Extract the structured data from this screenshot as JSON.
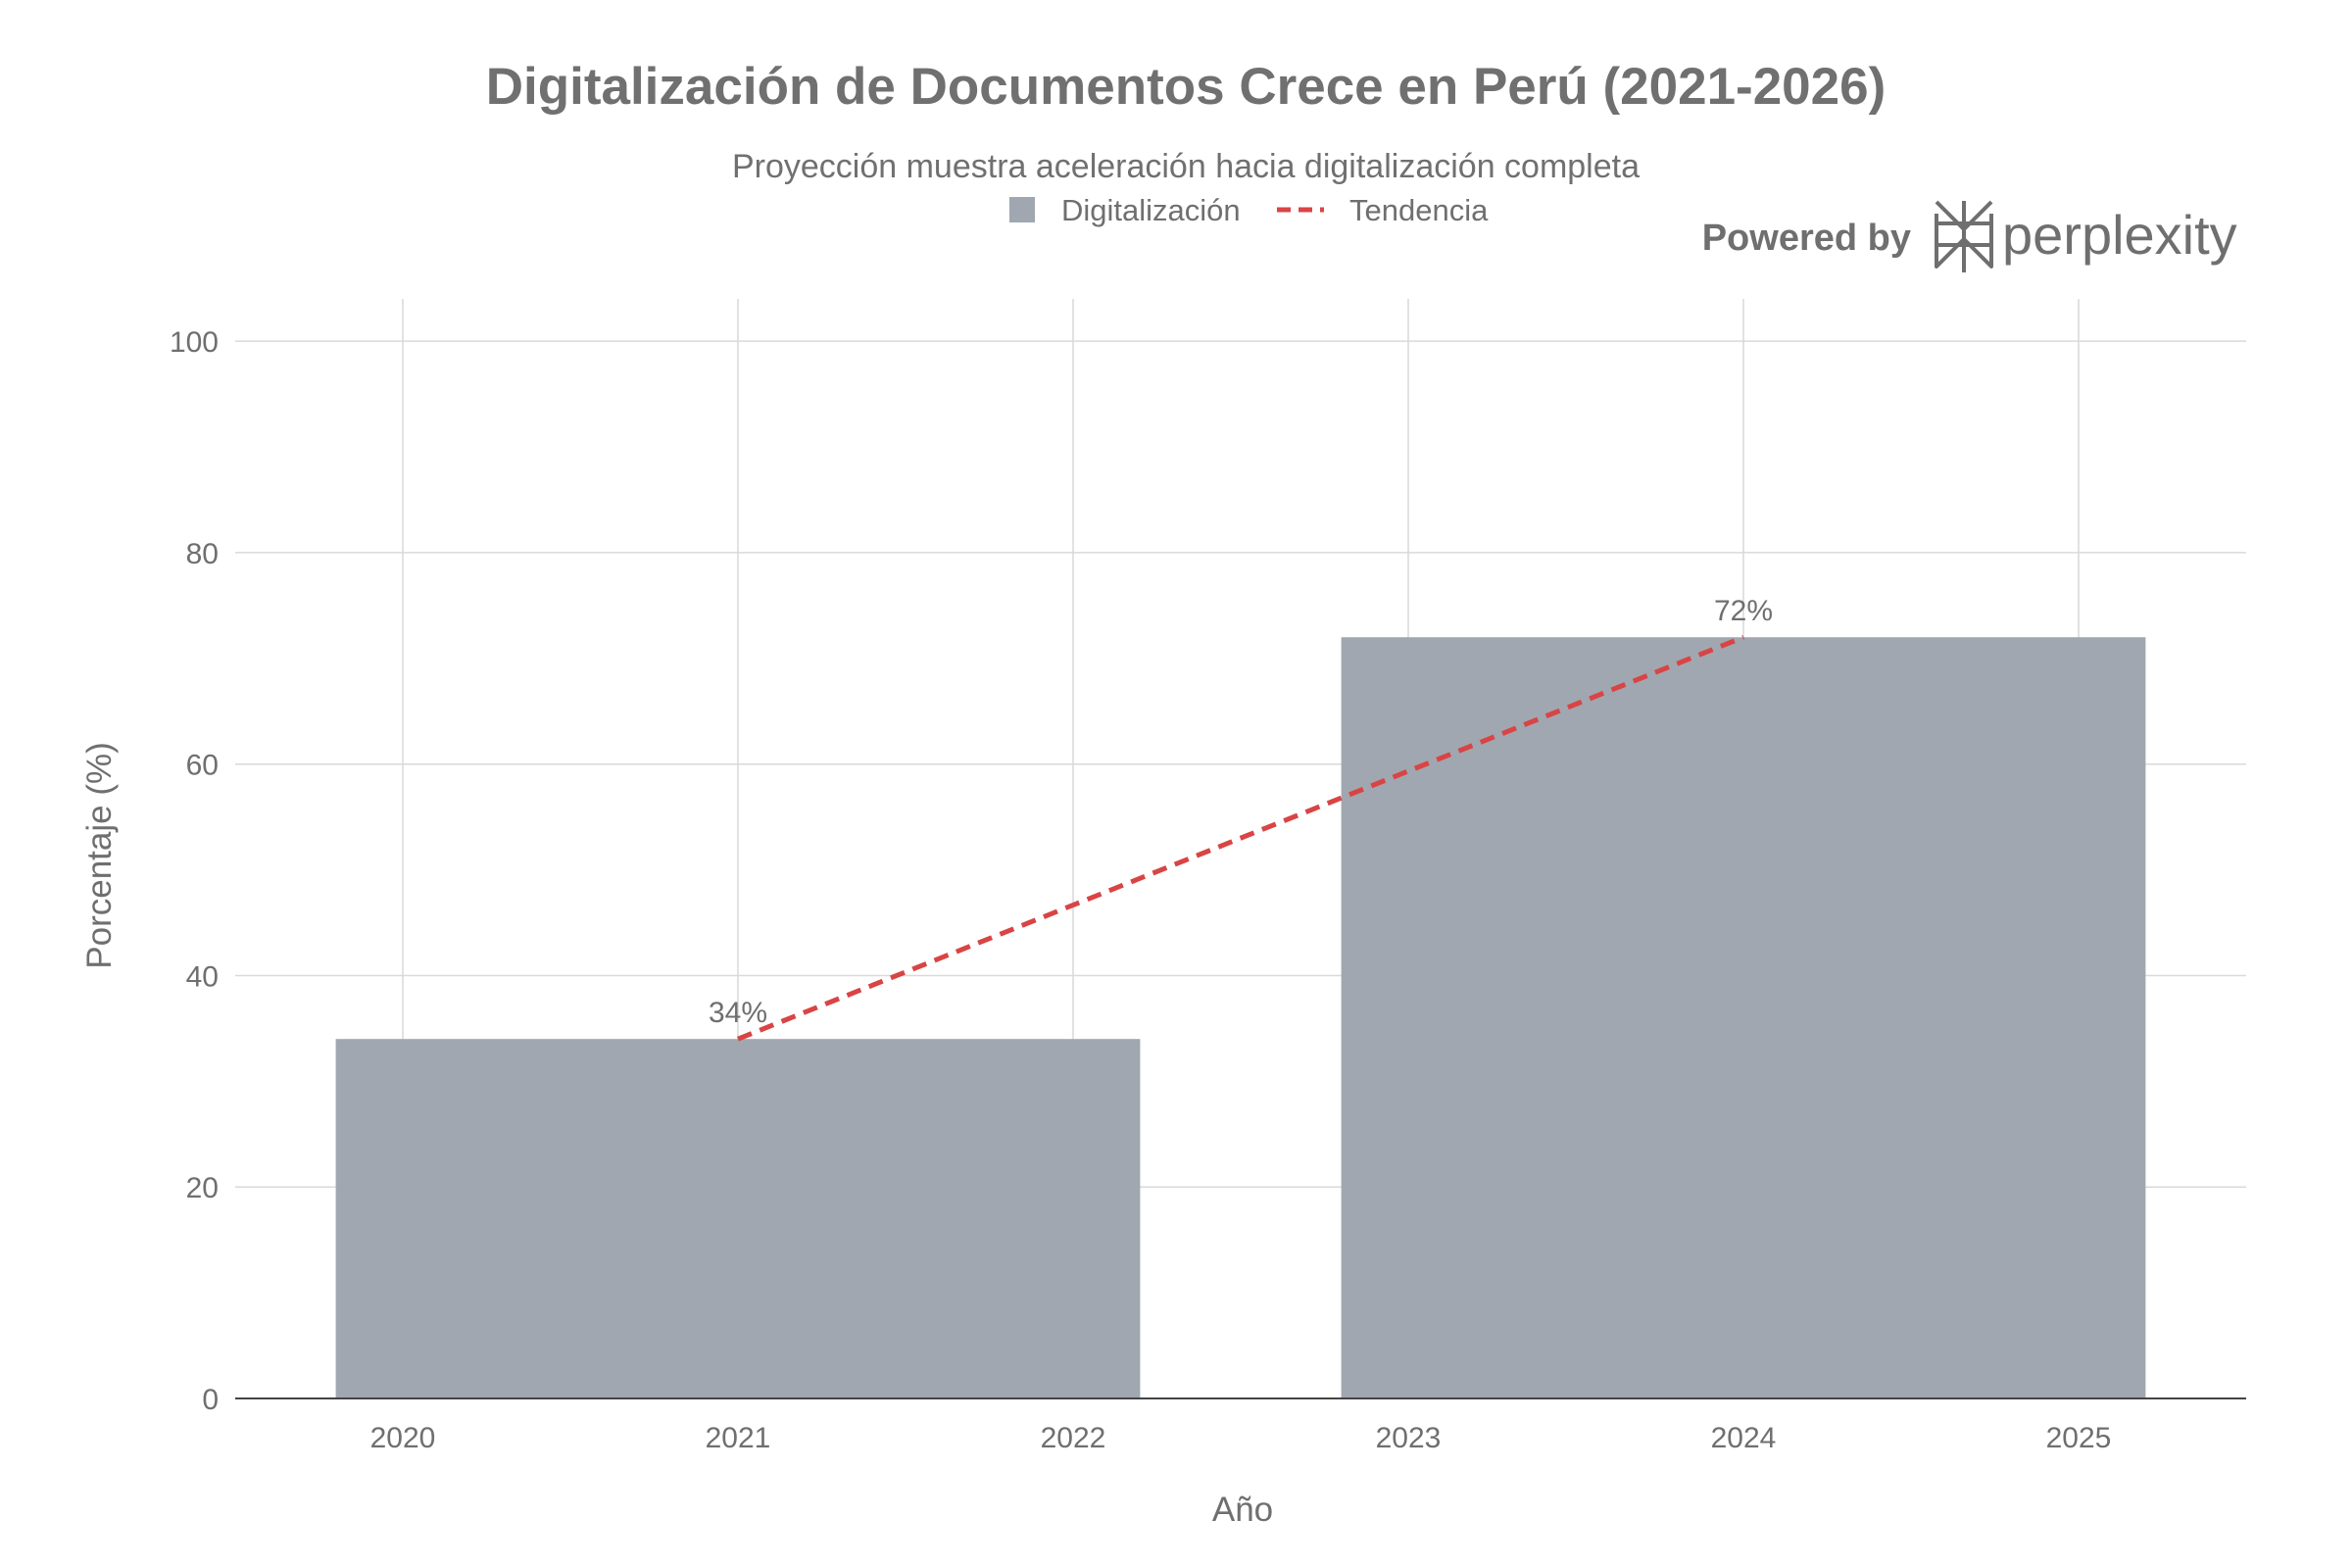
{
  "chart_data": {
    "type": "bar",
    "title": "Digitalización de Documentos Crece en Perú (2021-2026)",
    "subtitle": "Proyección muestra aceleración hacia digitalización completa",
    "xlabel": "Año",
    "ylabel": "Porcentaje (%)",
    "x_ticks": [
      "2020",
      "2021",
      "2022",
      "2023",
      "2024",
      "2025"
    ],
    "x_range": [
      2019.5,
      2025.5
    ],
    "ylim": [
      0,
      104
    ],
    "y_ticks": [
      0,
      20,
      40,
      60,
      80,
      100
    ],
    "grid": true,
    "legend_placement": "top-center",
    "series": [
      {
        "name": "Digitalización",
        "kind": "bar",
        "color": "#a0a7b0",
        "bar_width_years": 2.4,
        "points": [
          {
            "x": 2021,
            "y": 34,
            "label": "34%"
          },
          {
            "x": 2024,
            "y": 72,
            "label": "72%"
          }
        ]
      },
      {
        "name": "Tendencia",
        "kind": "line",
        "style": "dashed",
        "color": "#d94444",
        "points": [
          {
            "x": 2021,
            "y": 34
          },
          {
            "x": 2024,
            "y": 72
          }
        ]
      }
    ]
  },
  "branding": {
    "powered_by": "Powered by",
    "name": "perplexity",
    "icon": "perplexity-logo-icon"
  },
  "colors": {
    "grid": "#d9d9d9",
    "axis": "#444444",
    "text": "#6f6f6f"
  }
}
